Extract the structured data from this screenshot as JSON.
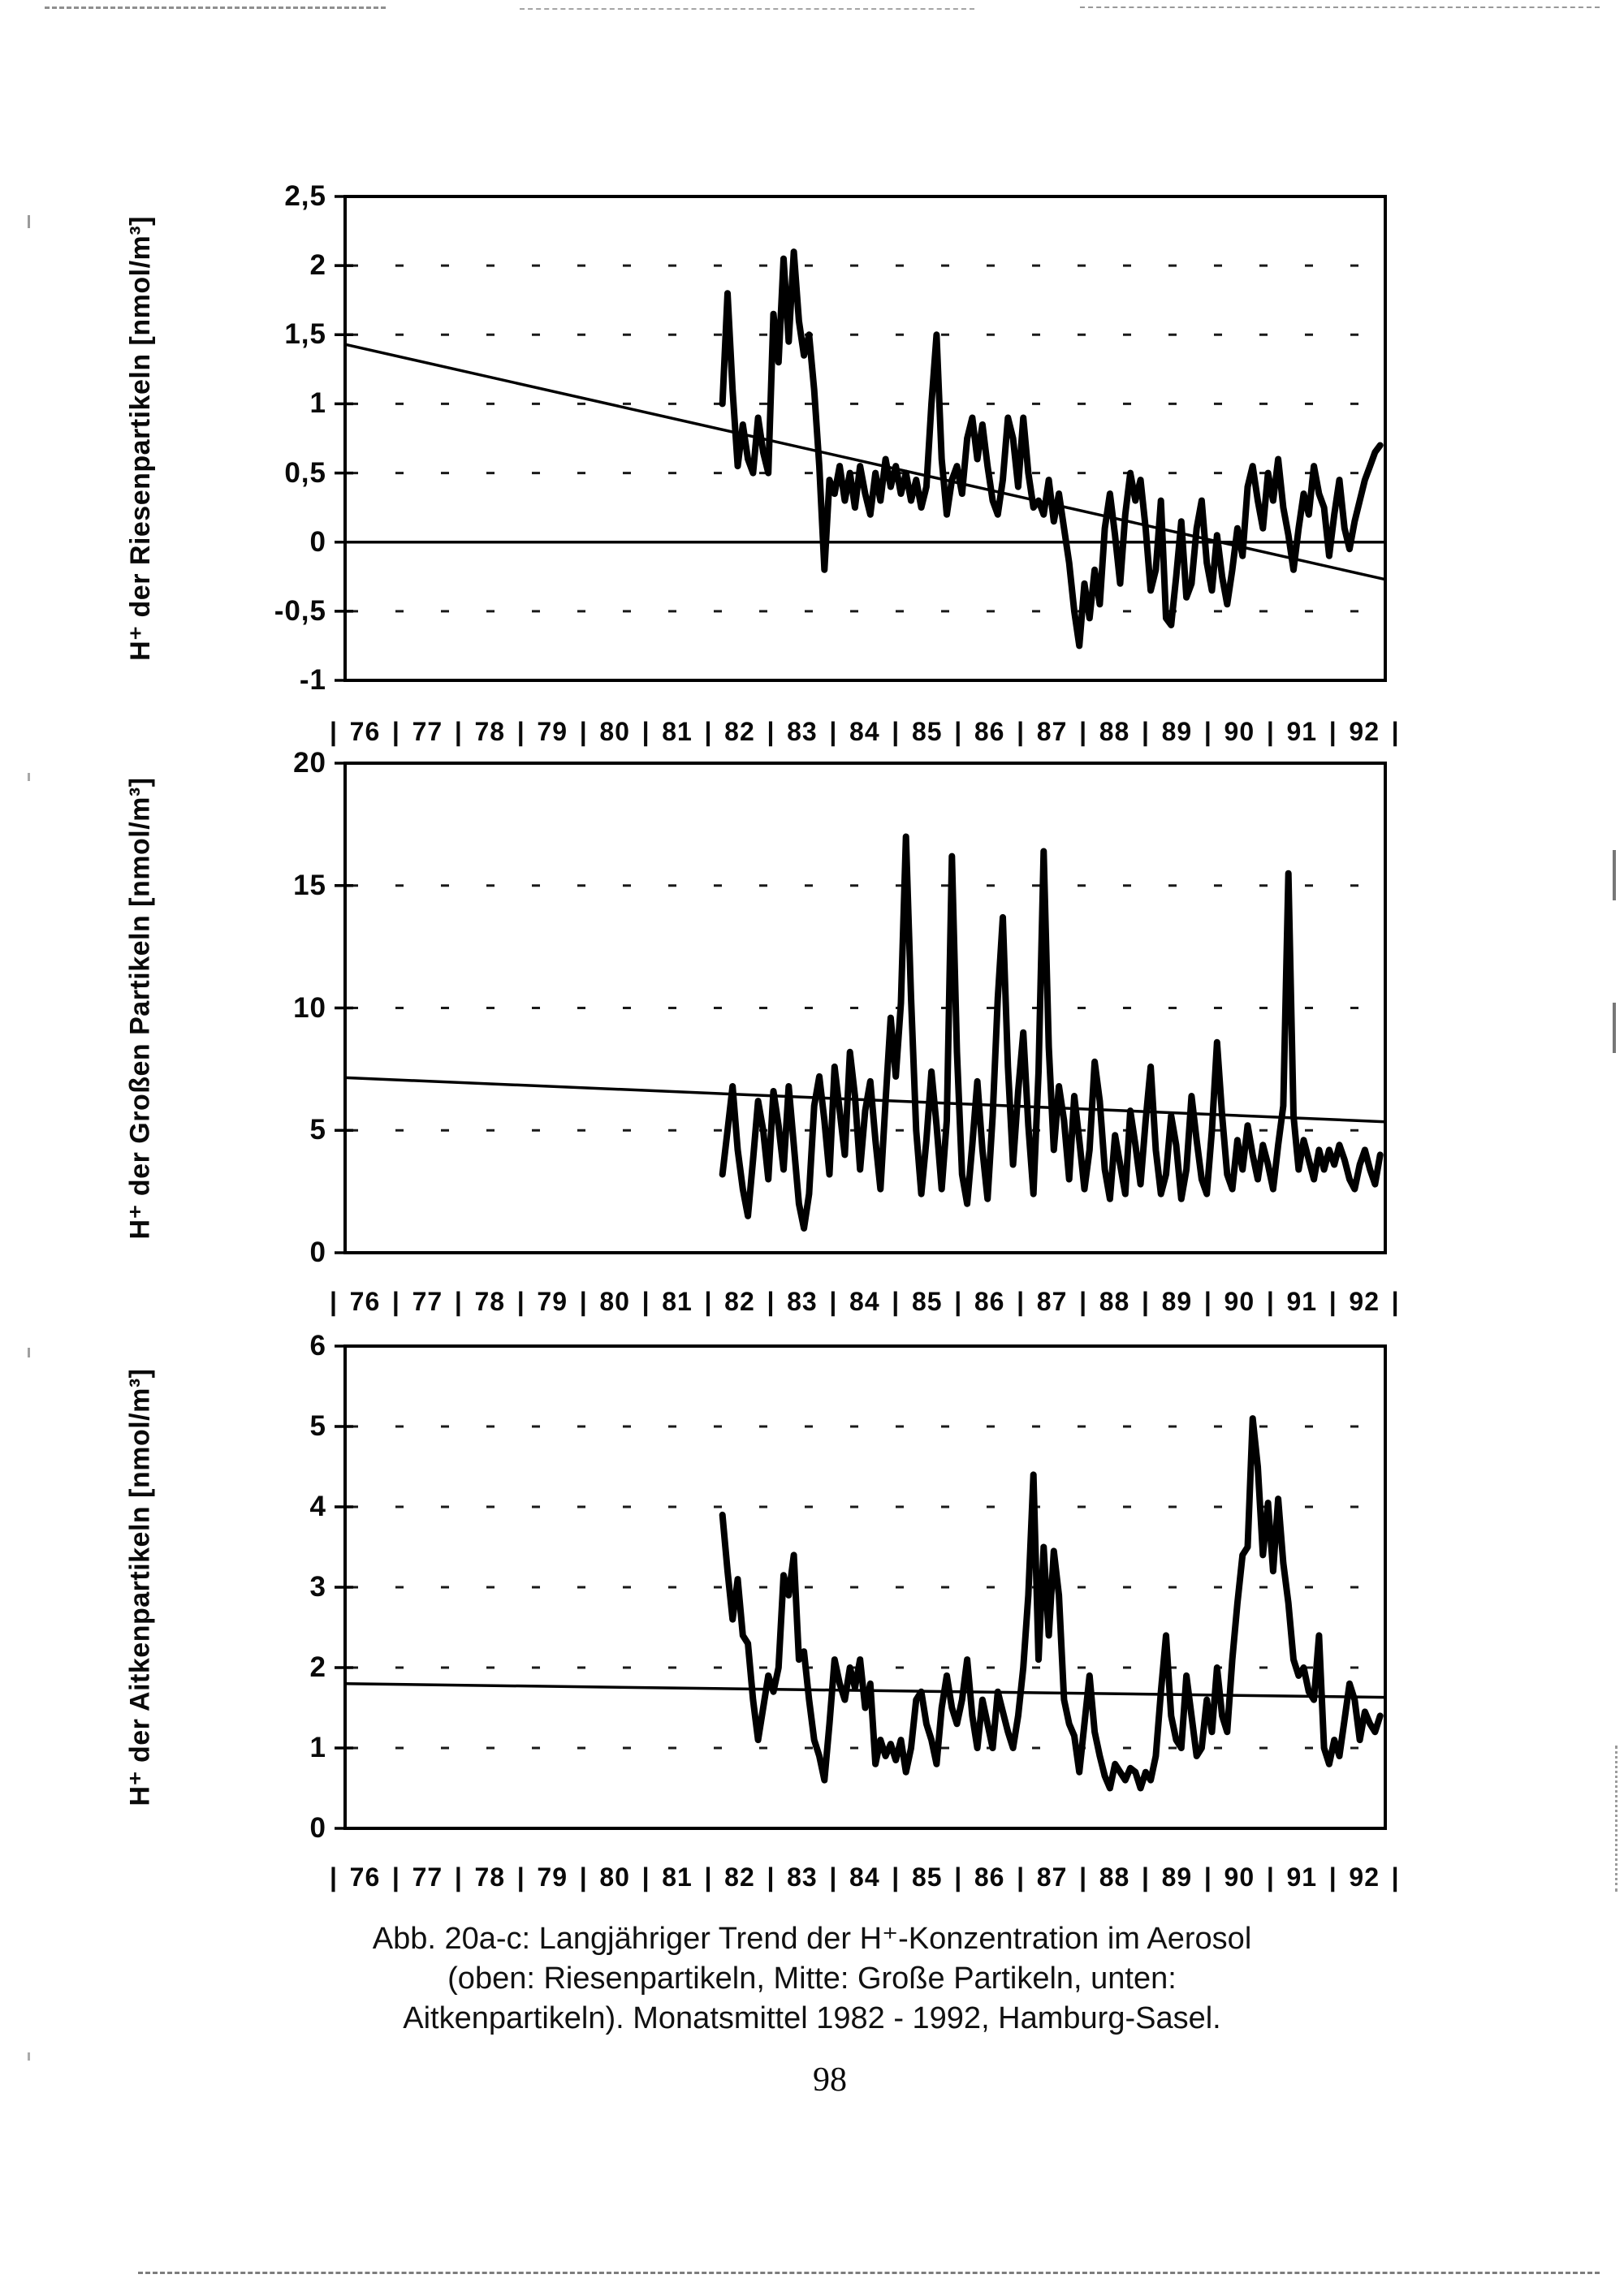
{
  "page": {
    "number": "98"
  },
  "caption": {
    "line1": "Abb. 20a-c: Langjähriger Trend der H⁺-Konzentration im Aerosol",
    "line2": "(oben: Riesenpartikeln, Mitte: Große Partikeln, unten:",
    "line3": "Aitkenpartikeln). Monatsmittel 1982 - 1992, Hamburg-Sasel."
  },
  "x_axis": {
    "separator": "|",
    "years": [
      "76",
      "77",
      "78",
      "79",
      "80",
      "81",
      "82",
      "83",
      "84",
      "85",
      "86",
      "87",
      "88",
      "89",
      "90",
      "91",
      "92"
    ]
  },
  "chart_data": [
    {
      "type": "line",
      "id": "riesenpartikeln",
      "ylabel": "H⁺ der Riesenpartikeln [nmol/m³]",
      "x_range": [
        1976,
        1993
      ],
      "ylim": [
        -1,
        2.5
      ],
      "yticks": [
        {
          "v": 2.5,
          "label": "2,5"
        },
        {
          "v": 2,
          "label": "2"
        },
        {
          "v": 1.5,
          "label": "1,5"
        },
        {
          "v": 1,
          "label": "1"
        },
        {
          "v": 0.5,
          "label": "0,5"
        },
        {
          "v": 0,
          "label": "0"
        },
        {
          "v": -0.5,
          "label": "-0,5"
        },
        {
          "v": -1,
          "label": "-1"
        }
      ],
      "grid_values": [
        2,
        1.5,
        1,
        0.5,
        -0.5
      ],
      "zero_line": 0,
      "grid": "dashed horizontal",
      "legend": "none",
      "trend": {
        "x": [
          1976,
          1993
        ],
        "y": [
          1.43,
          -0.27
        ]
      },
      "series": {
        "name": "Monatsmittel H+ Riesenpartikeln",
        "x_start": 1982.1667,
        "x_step_years": 0.0833,
        "values": [
          1.0,
          1.8,
          1.1,
          0.55,
          0.85,
          0.6,
          0.5,
          0.9,
          0.65,
          0.5,
          1.65,
          1.3,
          2.05,
          1.45,
          2.1,
          1.6,
          1.35,
          1.5,
          1.1,
          0.55,
          -0.2,
          0.45,
          0.35,
          0.55,
          0.3,
          0.5,
          0.25,
          0.55,
          0.35,
          0.2,
          0.5,
          0.3,
          0.6,
          0.4,
          0.55,
          0.35,
          0.5,
          0.3,
          0.45,
          0.25,
          0.4,
          1.0,
          1.5,
          0.6,
          0.2,
          0.45,
          0.55,
          0.35,
          0.75,
          0.9,
          0.6,
          0.85,
          0.55,
          0.3,
          0.2,
          0.45,
          0.9,
          0.75,
          0.4,
          0.9,
          0.5,
          0.25,
          0.3,
          0.2,
          0.45,
          0.15,
          0.35,
          0.1,
          -0.15,
          -0.5,
          -0.75,
          -0.3,
          -0.55,
          -0.2,
          -0.45,
          0.1,
          0.35,
          0.05,
          -0.3,
          0.2,
          0.5,
          0.3,
          0.45,
          0.1,
          -0.35,
          -0.2,
          0.3,
          -0.55,
          -0.6,
          -0.25,
          0.15,
          -0.4,
          -0.3,
          0.1,
          0.3,
          -0.15,
          -0.35,
          0.05,
          -0.25,
          -0.45,
          -0.2,
          0.1,
          -0.1,
          0.4,
          0.55,
          0.3,
          0.1,
          0.5,
          0.3,
          0.6,
          0.25,
          0.05,
          -0.2,
          0.1,
          0.35,
          0.2,
          0.55,
          0.35,
          0.25,
          -0.1,
          0.2,
          0.45,
          0.1,
          -0.05,
          0.15,
          0.3,
          0.45,
          0.55,
          0.65,
          0.7
        ]
      }
    },
    {
      "type": "line",
      "id": "grosse-partikeln",
      "ylabel": "H⁺ der Großen Partikeln [nmol/m³]",
      "x_range": [
        1976,
        1993
      ],
      "ylim": [
        0,
        20
      ],
      "yticks": [
        {
          "v": 20,
          "label": "20"
        },
        {
          "v": 15,
          "label": "15"
        },
        {
          "v": 10,
          "label": "10"
        },
        {
          "v": 5,
          "label": "5"
        },
        {
          "v": 0,
          "label": "0"
        }
      ],
      "grid_values": [
        15,
        10,
        5
      ],
      "zero_line": null,
      "grid": "dashed horizontal",
      "legend": "none",
      "trend": {
        "x": [
          1976,
          1993
        ],
        "y": [
          7.15,
          5.35
        ]
      },
      "series": {
        "name": "Monatsmittel H+ Grosse Partikeln",
        "x_start": 1982.1667,
        "x_step_years": 0.0833,
        "values": [
          3.2,
          5.0,
          6.8,
          4.2,
          2.6,
          1.5,
          3.8,
          6.2,
          5.0,
          3.0,
          6.6,
          5.2,
          3.4,
          6.8,
          4.4,
          2.0,
          1.0,
          2.4,
          6.0,
          7.2,
          5.4,
          3.2,
          7.6,
          5.8,
          4.0,
          8.2,
          6.4,
          3.4,
          5.8,
          7.0,
          4.6,
          2.6,
          6.2,
          9.6,
          7.2,
          10.2,
          17.0,
          10.4,
          5.0,
          2.4,
          4.6,
          7.4,
          5.2,
          2.6,
          5.4,
          16.2,
          8.2,
          3.2,
          2.0,
          4.4,
          7.0,
          4.2,
          2.2,
          5.6,
          10.4,
          13.7,
          7.6,
          3.6,
          6.6,
          9.0,
          5.2,
          2.4,
          7.4,
          16.4,
          8.4,
          4.2,
          6.8,
          5.4,
          3.0,
          6.4,
          4.6,
          2.6,
          4.2,
          7.8,
          6.2,
          3.4,
          2.2,
          4.8,
          3.6,
          2.4,
          5.8,
          4.4,
          2.8,
          5.4,
          7.6,
          4.2,
          2.4,
          3.2,
          5.6,
          4.4,
          2.2,
          3.4,
          6.4,
          4.6,
          3.0,
          2.4,
          5.0,
          8.6,
          5.6,
          3.2,
          2.6,
          4.6,
          3.4,
          5.2,
          4.0,
          3.0,
          4.4,
          3.6,
          2.6,
          4.4,
          6.0,
          15.5,
          5.6,
          3.4,
          4.6,
          3.8,
          3.0,
          4.2,
          3.4,
          4.2,
          3.6,
          4.4,
          3.8,
          3.0,
          2.6,
          3.6,
          4.2,
          3.4,
          2.8,
          4.0
        ]
      }
    },
    {
      "type": "line",
      "id": "aitkenpartikeln",
      "ylabel": "H⁺ der Aitkenpartikeln [nmol/m³]",
      "x_range": [
        1976,
        1993
      ],
      "ylim": [
        0,
        6
      ],
      "yticks": [
        {
          "v": 6,
          "label": "6"
        },
        {
          "v": 5,
          "label": "5"
        },
        {
          "v": 4,
          "label": "4"
        },
        {
          "v": 3,
          "label": "3"
        },
        {
          "v": 2,
          "label": "2"
        },
        {
          "v": 1,
          "label": "1"
        },
        {
          "v": 0,
          "label": "0"
        }
      ],
      "grid_values": [
        5,
        4,
        3,
        2,
        1
      ],
      "zero_line": null,
      "grid": "dashed horizontal",
      "legend": "none",
      "trend": {
        "x": [
          1976,
          1993
        ],
        "y": [
          1.8,
          1.63
        ]
      },
      "series": {
        "name": "Monatsmittel H+ Aitkenpartikeln",
        "x_start": 1982.1667,
        "x_step_years": 0.0833,
        "values": [
          3.9,
          3.2,
          2.6,
          3.1,
          2.4,
          2.3,
          1.6,
          1.1,
          1.5,
          1.9,
          1.7,
          2.0,
          3.15,
          2.9,
          3.4,
          2.1,
          2.2,
          1.6,
          1.1,
          0.9,
          0.6,
          1.3,
          2.1,
          1.8,
          1.6,
          2.0,
          1.75,
          2.1,
          1.5,
          1.8,
          0.8,
          1.1,
          0.9,
          1.05,
          0.85,
          1.1,
          0.7,
          1.0,
          1.6,
          1.7,
          1.3,
          1.1,
          0.8,
          1.5,
          1.9,
          1.5,
          1.3,
          1.6,
          2.1,
          1.4,
          1.0,
          1.6,
          1.3,
          1.0,
          1.7,
          1.45,
          1.2,
          1.0,
          1.4,
          2.0,
          2.9,
          4.4,
          2.1,
          3.5,
          2.4,
          3.45,
          2.9,
          1.6,
          1.3,
          1.15,
          0.7,
          1.3,
          1.9,
          1.2,
          0.9,
          0.65,
          0.5,
          0.8,
          0.7,
          0.6,
          0.75,
          0.7,
          0.5,
          0.7,
          0.6,
          0.9,
          1.7,
          2.4,
          1.4,
          1.1,
          1.0,
          1.9,
          1.4,
          0.9,
          1.0,
          1.6,
          1.2,
          2.0,
          1.4,
          1.2,
          2.1,
          2.8,
          3.4,
          3.5,
          5.1,
          4.5,
          3.4,
          4.05,
          3.2,
          4.1,
          3.3,
          2.8,
          2.1,
          1.9,
          2.0,
          1.7,
          1.6,
          2.4,
          1.0,
          0.8,
          1.1,
          0.9,
          1.35,
          1.8,
          1.6,
          1.1,
          1.45,
          1.3,
          1.2,
          1.4
        ]
      }
    }
  ]
}
